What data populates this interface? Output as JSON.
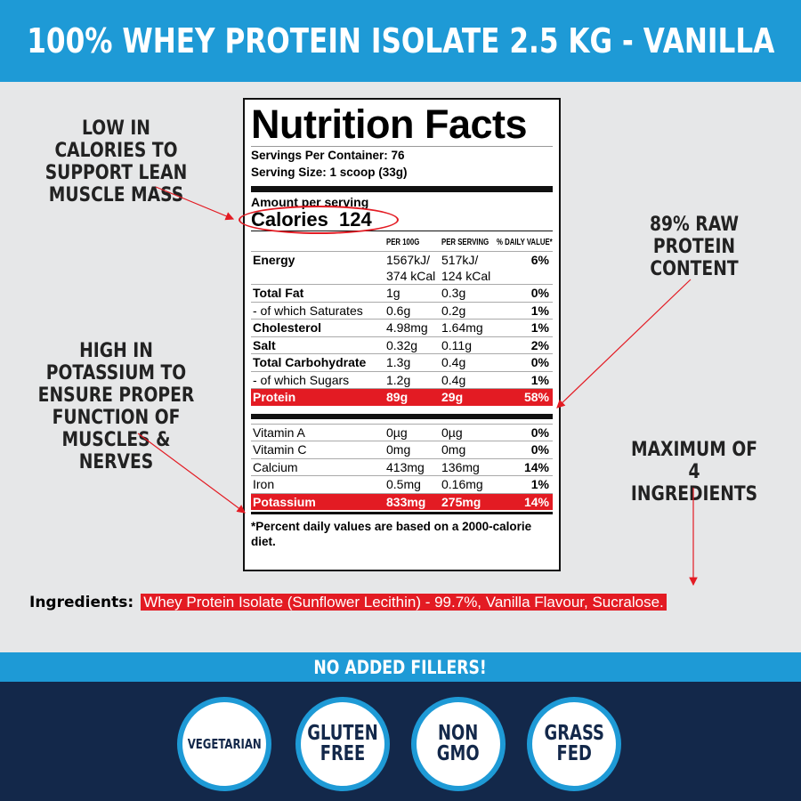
{
  "title": "100% WHEY PROTEIN ISOLATE 2.5 KG - VANILLA",
  "callouts": {
    "calories": "LOW IN CALORIES TO SUPPORT LEAN MUSCLE MASS",
    "potassium": "HIGH IN POTASSIUM TO ENSURE PROPER FUNCTION OF MUSCLES & NERVES",
    "protein": "89% RAW PROTEIN CONTENT",
    "ingredients": "MAXIMUM OF 4 INGREDIENTS"
  },
  "label": {
    "title": "Nutrition Facts",
    "servings": "Servings Per Container: 76",
    "serving_size": "Serving Size: 1 scoop (33g)",
    "amount": "Amount per serving",
    "calories": "Calories  124",
    "headers": [
      "PER 100G",
      "PER SERVING",
      "% DAILY VALUE*"
    ],
    "energy": {
      "name": "Energy",
      "per100": "1567kJ/ 374 kCal",
      "serving": "517kJ/ 124 kCal",
      "dv": "6%"
    },
    "rows": [
      {
        "name": "Total Fat",
        "per100": "1g",
        "serving": "0.3g",
        "dv": "0%"
      },
      {
        "name": "- of which Saturates",
        "per100": "0.6g",
        "serving": "0.2g",
        "dv": "1%"
      },
      {
        "name": "Cholesterol",
        "per100": "4.98mg",
        "serving": "1.64mg",
        "dv": "1%"
      },
      {
        "name": "Salt",
        "per100": "0.32g",
        "serving": "0.11g",
        "dv": "2%"
      },
      {
        "name": "Total Carbohydrate",
        "per100": "1.3g",
        "serving": "0.4g",
        "dv": "0%"
      },
      {
        "name": "- of which Sugars",
        "per100": "1.2g",
        "serving": "0.4g",
        "dv": "1%"
      },
      {
        "name": "Protein",
        "per100": "89g",
        "serving": "29g",
        "dv": "58%"
      }
    ],
    "vitamins": [
      {
        "name": "Vitamin A",
        "per100": "0µg",
        "serving": "0µg",
        "dv": "0%"
      },
      {
        "name": "Vitamin C",
        "per100": "0mg",
        "serving": "0mg",
        "dv": "0%"
      },
      {
        "name": "Calcium",
        "per100": "413mg",
        "serving": "136mg",
        "dv": "14%"
      },
      {
        "name": "Iron",
        "per100": "0.5mg",
        "serving": "0.16mg",
        "dv": "1%"
      },
      {
        "name": "Potassium",
        "per100": "833mg",
        "serving": "275mg",
        "dv": "14%"
      }
    ],
    "footnote": "*Percent daily values are based on a 2000-calorie diet."
  },
  "ingredients": {
    "label": "Ingredients:",
    "text": "Whey Protein Isolate (Sunflower Lecithin) - 99.7%, Vanilla Flavour, Sucralose."
  },
  "banner": "NO ADDED FILLERS!",
  "badges": [
    "VEGETARIAN",
    "GLUTEN\nFREE",
    "NON\nGMO",
    "GRASS\nFED"
  ],
  "colors": {
    "blue": "#1e9ad6",
    "navy": "#13284a",
    "red": "#e31b23",
    "bg": "#e6e7e8"
  }
}
